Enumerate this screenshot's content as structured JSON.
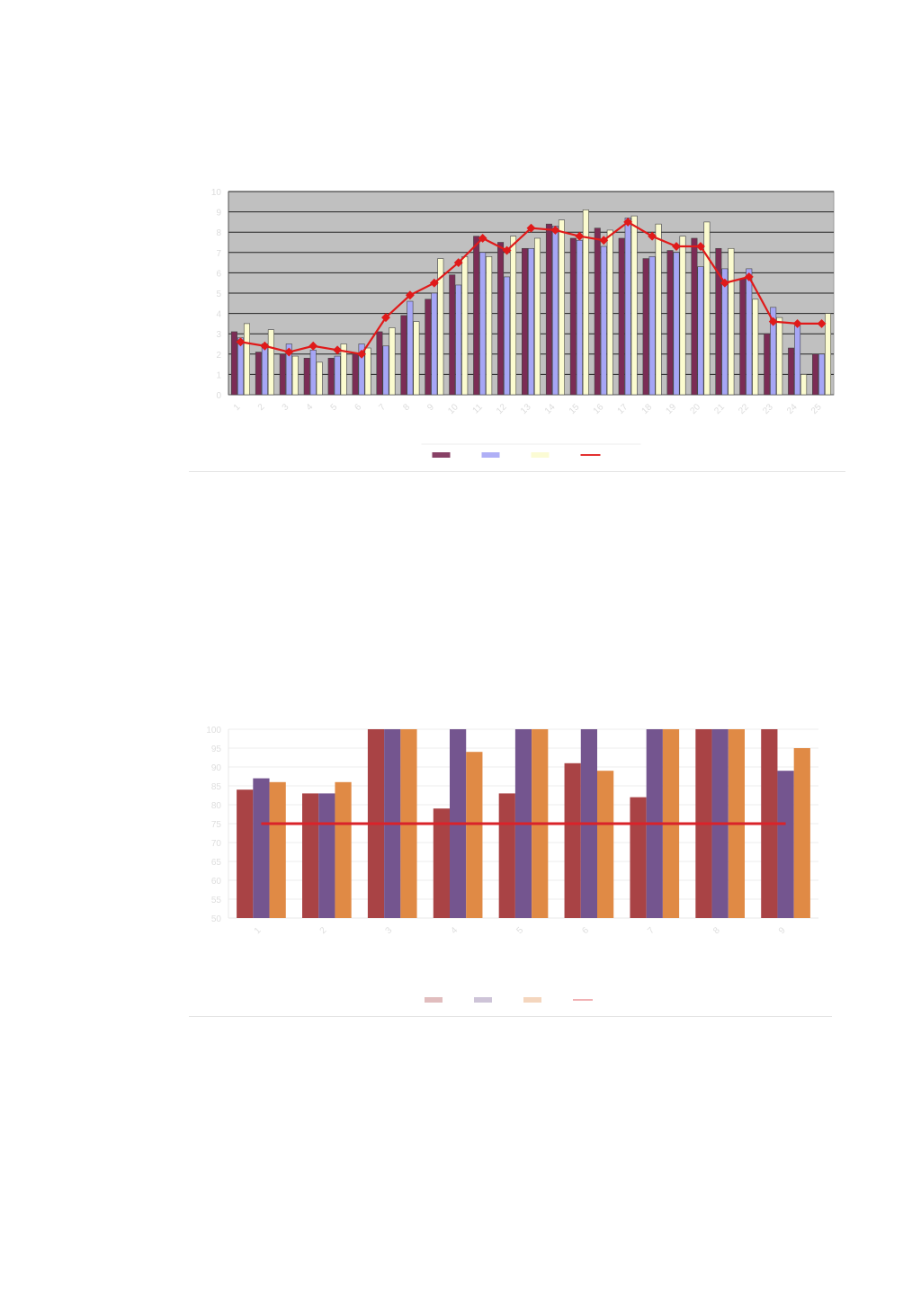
{
  "page_number": "",
  "paragraph": "",
  "chart_data": [
    {
      "type": "bar",
      "title": "",
      "categories": [
        "1",
        "2",
        "3",
        "4",
        "5",
        "6",
        "7",
        "8",
        "9",
        "10",
        "11",
        "12",
        "13",
        "14",
        "15",
        "16",
        "17",
        "18",
        "19",
        "20",
        "21",
        "22",
        "23",
        "24",
        "25"
      ],
      "ylim": [
        0,
        10
      ],
      "yticks": [
        "0",
        "1",
        "2",
        "3",
        "4",
        "5",
        "6",
        "7",
        "8",
        "9",
        "10"
      ],
      "grid": true,
      "legend_position": "bottom",
      "series": [
        {
          "type": "bar",
          "color": "#7b2c55",
          "values": [
            3.1,
            2.1,
            2.0,
            1.8,
            1.8,
            2.0,
            3.1,
            3.9,
            4.7,
            5.9,
            7.8,
            7.5,
            7.2,
            8.4,
            7.7,
            8.2,
            7.7,
            6.7,
            7.1,
            7.7,
            7.2,
            5.7,
            3.0,
            2.3,
            2.0
          ]
        },
        {
          "type": "bar",
          "color": "#a6a6f5",
          "values": [
            2.8,
            2.5,
            2.5,
            2.2,
            1.9,
            2.5,
            2.4,
            4.6,
            5.0,
            5.4,
            7.0,
            5.8,
            7.2,
            8.3,
            7.6,
            7.3,
            8.7,
            6.8,
            7.0,
            6.3,
            6.2,
            6.2,
            4.3,
            3.4,
            2.0
          ]
        },
        {
          "type": "bar",
          "color": "#fbfbcf",
          "values": [
            3.5,
            3.2,
            1.9,
            1.6,
            2.5,
            2.3,
            3.3,
            3.6,
            6.7,
            6.8,
            6.8,
            7.8,
            7.7,
            8.6,
            9.1,
            8.1,
            8.8,
            8.4,
            7.8,
            8.5,
            7.2,
            4.7,
            3.8,
            1.0,
            4.0
          ]
        },
        {
          "type": "line",
          "color": "#e01a1a",
          "values": [
            2.6,
            2.4,
            2.1,
            2.4,
            2.2,
            2.0,
            3.8,
            4.9,
            5.5,
            6.5,
            7.7,
            7.1,
            8.2,
            8.1,
            7.8,
            7.6,
            8.5,
            7.8,
            7.3,
            7.3,
            5.5,
            5.8,
            3.6,
            3.5,
            3.5
          ]
        }
      ]
    },
    {
      "type": "bar",
      "title": "",
      "categories": [
        "1",
        "2",
        "3",
        "4",
        "5",
        "6",
        "7",
        "8",
        "9"
      ],
      "ylim": [
        50,
        100
      ],
      "yticks": [
        "50",
        "55",
        "60",
        "65",
        "70",
        "75",
        "80",
        "85",
        "90",
        "95",
        "100"
      ],
      "grid": true,
      "legend_position": "bottom",
      "series": [
        {
          "type": "bar",
          "color": "#a94345",
          "values": [
            84,
            83,
            100,
            79,
            83,
            91,
            82,
            100,
            100
          ]
        },
        {
          "type": "bar",
          "color": "#74558f",
          "values": [
            87,
            83,
            100,
            100,
            100,
            100,
            100,
            100,
            89
          ]
        },
        {
          "type": "bar",
          "color": "#e08a45",
          "values": [
            86,
            86,
            100,
            94,
            100,
            89,
            100,
            100,
            95
          ]
        },
        {
          "type": "line",
          "color": "#d9232a",
          "values": [
            75,
            75,
            75,
            75,
            75,
            75,
            75,
            75,
            75
          ]
        }
      ]
    }
  ]
}
